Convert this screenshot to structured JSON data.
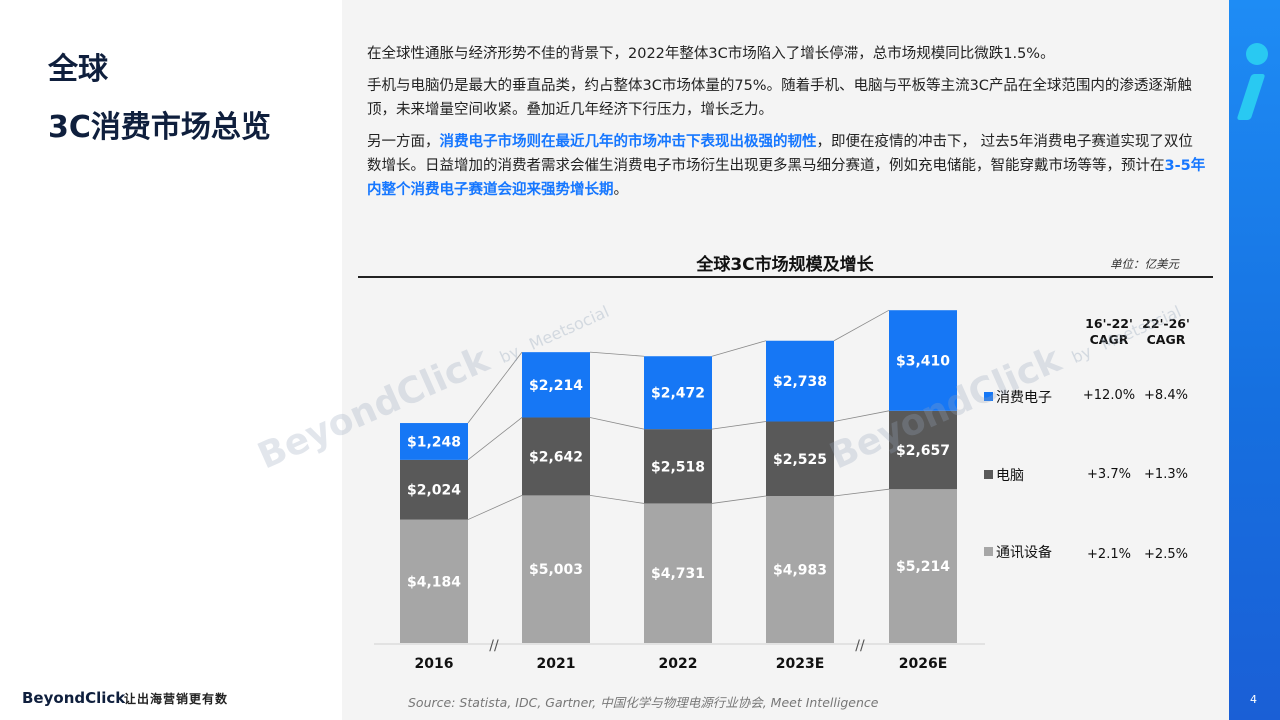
{
  "title": {
    "line1": "全球",
    "line2": "3C消费市场总览"
  },
  "paragraphs": {
    "p1": "在全球性通胀与经济形势不佳的背景下，2022年整体3C市场陷入了增长停滞，总市场规模同比微跌1.5%。",
    "p2": "手机与电脑仍是最大的垂直品类，约占整体3C市场体量的75%。随着手机、电脑与平板等主流3C产品在全球范围内的渗透逐渐触顶，未来增量空间收紧。叠加近几年经济下行压力，增长乏力。",
    "p3_a": "另一方面，",
    "p3_b": "消费电子市场则在最近几年的市场冲击下表现出极强的韧性",
    "p3_c": "，即便在疫情的冲击下， 过去5年消费电子赛道实现了双位数增长。日益增加的消费者需求会催生消费电子市场衍生出现更多黑马细分赛道，例如充电储能，智能穿戴市场等等，预计在",
    "p3_d": "3-5年内整个消费电子赛道会迎来强势增长期",
    "p3_e": "。"
  },
  "chart_data": {
    "type": "bar",
    "stacked": true,
    "title": "全球3C市场规模及增长",
    "unit": "单位：亿美元",
    "categories": [
      "2016",
      "2021",
      "2022",
      "2023E",
      "2026E"
    ],
    "series": [
      {
        "name": "通讯设备",
        "values": [
          4184,
          5003,
          4731,
          4983,
          5214
        ],
        "labels": [
          "$4,184",
          "$5,003",
          "$4,731",
          "$4,983",
          "$5,214"
        ],
        "color": "#a6a6a6"
      },
      {
        "name": "电脑",
        "values": [
          2024,
          2642,
          2518,
          2525,
          2657
        ],
        "labels": [
          "$2,024",
          "$2,642",
          "$2,518",
          "$2,525",
          "$2,657"
        ],
        "color": "#595959"
      },
      {
        "name": "消费电子",
        "values": [
          1248,
          2214,
          2472,
          2738,
          3410
        ],
        "labels": [
          "$1,248",
          "$2,214",
          "$2,472",
          "$2,738",
          "$3,410"
        ],
        "color": "#1677f5"
      }
    ],
    "axis_break_marks": "//",
    "cagr": {
      "headers": [
        "16'-22' CAGR",
        "22'-26' CAGR"
      ],
      "rows": [
        {
          "name": "消费电子",
          "values": [
            "+12.0%",
            "+8.4%"
          ]
        },
        {
          "name": "电脑",
          "values": [
            "+3.7%",
            "+1.3%"
          ]
        },
        {
          "name": "通讯设备",
          "values": [
            "+2.1%",
            "+2.5%"
          ]
        }
      ]
    }
  },
  "cagr_headers": {
    "h1a": "16'-22'",
    "h1b": "CAGR",
    "h2a": "22'-26'",
    "h2b": "CAGR"
  },
  "source": "Source: Statista, IDC, Gartner, 中国化学与物理电源行业协会, Meet Intelligence",
  "footer": {
    "logo": "BeyondClick",
    "tagline": "让出海营销更有数",
    "page": "4"
  },
  "watermark": {
    "brand": "BeyondClick",
    "by": "by",
    "partner": "Meetsocial"
  },
  "colors": {
    "accent": "#1677ff",
    "accent_bar": "#1a72e8",
    "accent_cyan": "#29c9f2",
    "title": "#0f1f3d"
  }
}
